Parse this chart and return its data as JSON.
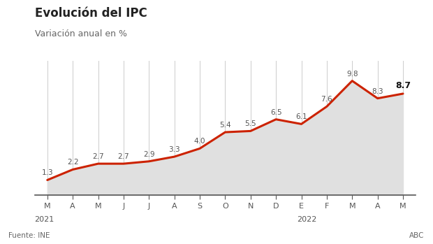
{
  "title": "Evolución del IPC",
  "subtitle": "Variación anual en %",
  "source": "Fuente: INE",
  "credit": "ABC",
  "x_labels": [
    "M",
    "A",
    "M",
    "J",
    "J",
    "A",
    "S",
    "O",
    "N",
    "D",
    "E",
    "F",
    "M",
    "A",
    "M"
  ],
  "values": [
    1.3,
    2.2,
    2.7,
    2.7,
    2.9,
    3.3,
    4.0,
    5.4,
    5.5,
    6.5,
    6.1,
    7.6,
    9.8,
    8.3,
    8.7
  ],
  "year_2021_idx": 0,
  "year_2022_idx": 10,
  "line_color": "#cc2200",
  "fill_color": "#e0e0e0",
  "grid_color": "#cccccc",
  "background_color": "#ffffff",
  "label_color": "#555555",
  "last_label_color": "#111111",
  "axis_line_color": "#555555",
  "ylim": [
    0,
    11.5
  ],
  "figsize": [
    6.2,
    3.49
  ],
  "dpi": 100,
  "title_fontsize": 12,
  "subtitle_fontsize": 9,
  "label_fontsize": 7.5,
  "last_label_fontsize": 9,
  "tick_fontsize": 8,
  "source_fontsize": 7.5
}
